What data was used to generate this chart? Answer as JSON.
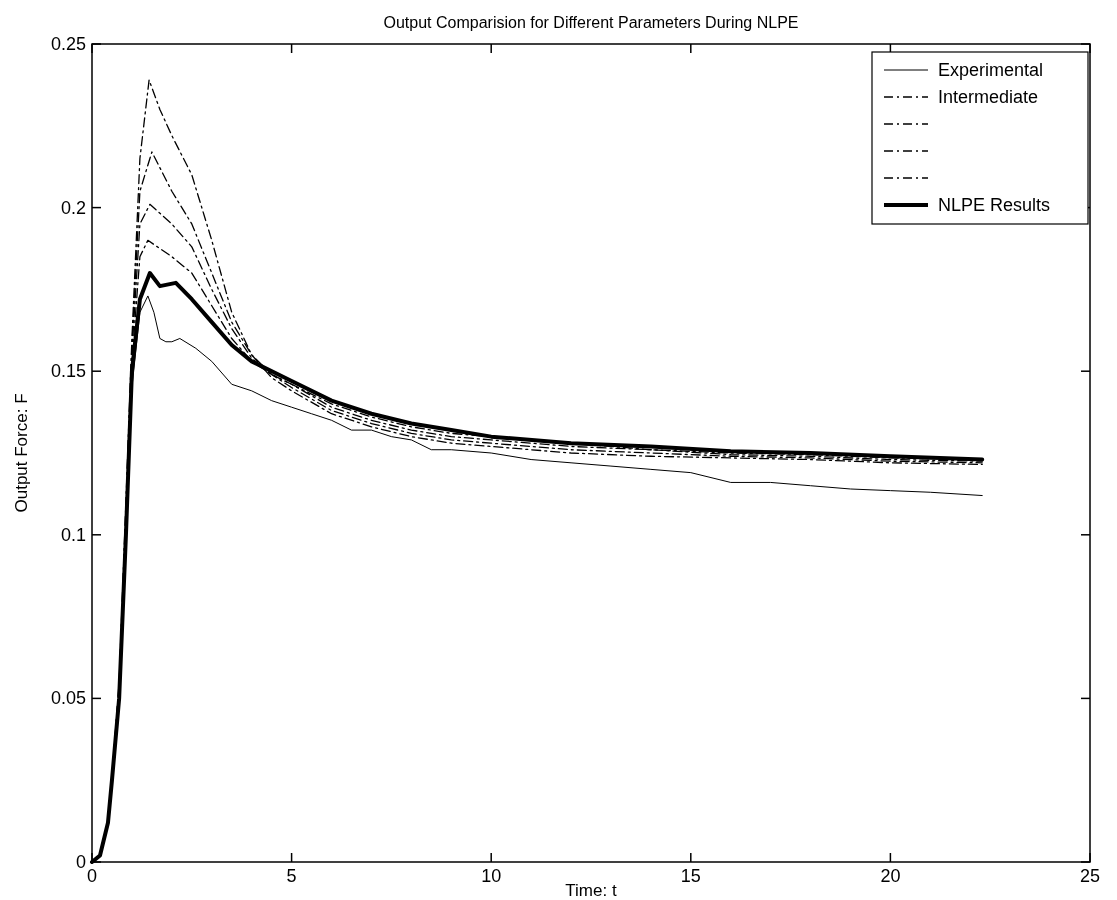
{
  "chart_data": {
    "type": "line",
    "title": "Output Comparision for Different Parameters During NLPE",
    "xlabel": "Time: t",
    "ylabel": "Output Force: F",
    "xlim": [
      0,
      25
    ],
    "ylim": [
      0,
      0.25
    ],
    "xticks": [
      0,
      5,
      10,
      15,
      20,
      25
    ],
    "yticks": [
      0,
      0.05,
      0.1,
      0.15,
      0.2,
      0.25
    ],
    "grid": false,
    "legend": "top right",
    "marker": "none",
    "series": [
      {
        "name": "Experimental",
        "color": "#000000",
        "line_style": "solid",
        "x": [
          0,
          0.2,
          0.4,
          0.5,
          0.68,
          0.85,
          1.0,
          1.2,
          1.4,
          1.55,
          1.7,
          1.85,
          2.0,
          2.2,
          2.6,
          3.0,
          3.5,
          4.0,
          4.5,
          5,
          5.5,
          6,
          6.5,
          7,
          7.5,
          8,
          8.5,
          9,
          10,
          11,
          12,
          13,
          14,
          15,
          16,
          17,
          18,
          19,
          20,
          21,
          22.3
        ],
        "values": [
          0,
          0.002,
          0.012,
          0.025,
          0.05,
          0.1,
          0.145,
          0.168,
          0.173,
          0.168,
          0.16,
          0.159,
          0.159,
          0.16,
          0.157,
          0.153,
          0.146,
          0.144,
          0.141,
          0.139,
          0.137,
          0.135,
          0.132,
          0.132,
          0.13,
          0.129,
          0.126,
          0.126,
          0.125,
          0.123,
          0.122,
          0.121,
          0.12,
          0.119,
          0.116,
          0.116,
          0.115,
          0.114,
          0.1135,
          0.113,
          0.112
        ]
      },
      {
        "name": "Intermediate",
        "color": "#000000",
        "line_style": "dashdot",
        "x": [
          0,
          0.2,
          0.4,
          0.5,
          0.68,
          0.85,
          1.0,
          1.2,
          1.43,
          1.7,
          2.0,
          2.5,
          3.0,
          3.5,
          4.0,
          4.5,
          5,
          6,
          7,
          8,
          9,
          10,
          12,
          14,
          16,
          18,
          20,
          22.3
        ],
        "values": [
          0,
          0.002,
          0.012,
          0.026,
          0.055,
          0.11,
          0.16,
          0.215,
          0.239,
          0.23,
          0.222,
          0.21,
          0.19,
          0.168,
          0.155,
          0.148,
          0.144,
          0.137,
          0.133,
          0.13,
          0.128,
          0.127,
          0.125,
          0.124,
          0.1235,
          0.123,
          0.122,
          0.1215
        ]
      },
      {
        "color": "#000000",
        "line_style": "dashdot",
        "x": [
          0,
          0.2,
          0.4,
          0.5,
          0.68,
          0.85,
          1.0,
          1.2,
          1.5,
          2.0,
          2.5,
          3.0,
          3.5,
          4.0,
          4.5,
          5,
          6,
          7,
          8,
          9,
          10,
          12,
          14,
          16,
          18,
          20,
          22.3
        ],
        "values": [
          0,
          0.002,
          0.012,
          0.026,
          0.054,
          0.108,
          0.158,
          0.205,
          0.217,
          0.205,
          0.195,
          0.18,
          0.165,
          0.155,
          0.149,
          0.145,
          0.138,
          0.134,
          0.131,
          0.129,
          0.128,
          0.126,
          0.125,
          0.124,
          0.1235,
          0.1225,
          0.122
        ]
      },
      {
        "color": "#000000",
        "line_style": "dashdot",
        "x": [
          0,
          0.2,
          0.4,
          0.5,
          0.68,
          0.85,
          1.0,
          1.2,
          1.45,
          2.0,
          2.5,
          3.0,
          3.5,
          4.0,
          4.5,
          5,
          6,
          7,
          8,
          9,
          10,
          12,
          14,
          16,
          18,
          20,
          22.3
        ],
        "values": [
          0,
          0.002,
          0.012,
          0.026,
          0.053,
          0.105,
          0.156,
          0.195,
          0.201,
          0.195,
          0.188,
          0.175,
          0.163,
          0.154,
          0.149,
          0.146,
          0.139,
          0.135,
          0.132,
          0.13,
          0.129,
          0.127,
          0.126,
          0.1245,
          0.124,
          0.123,
          0.1225
        ]
      },
      {
        "color": "#000000",
        "line_style": "dashdot",
        "x": [
          0,
          0.2,
          0.4,
          0.5,
          0.68,
          0.85,
          1.0,
          1.2,
          1.4,
          2.0,
          2.5,
          3.0,
          3.5,
          4.0,
          4.5,
          5,
          6,
          7,
          8,
          9,
          10,
          12,
          14,
          16,
          18,
          20,
          22.3
        ],
        "values": [
          0,
          0.002,
          0.012,
          0.025,
          0.052,
          0.103,
          0.153,
          0.185,
          0.19,
          0.185,
          0.18,
          0.17,
          0.16,
          0.153,
          0.149,
          0.146,
          0.14,
          0.136,
          0.133,
          0.131,
          0.13,
          0.128,
          0.126,
          0.125,
          0.1245,
          0.1235,
          0.123
        ]
      },
      {
        "name": "NLPE Results",
        "color": "#000000",
        "line_style": "solid",
        "x": [
          0,
          0.2,
          0.4,
          0.5,
          0.68,
          0.85,
          1.0,
          1.2,
          1.45,
          1.7,
          2.1,
          2.5,
          3.0,
          3.5,
          4.0,
          5,
          6,
          7,
          8,
          9,
          10,
          12,
          14,
          16,
          18,
          20,
          22.3
        ],
        "values": [
          0,
          0.002,
          0.012,
          0.025,
          0.05,
          0.1,
          0.15,
          0.172,
          0.18,
          0.176,
          0.177,
          0.172,
          0.165,
          0.158,
          0.153,
          0.147,
          0.141,
          0.137,
          0.134,
          0.132,
          0.13,
          0.128,
          0.127,
          0.1255,
          0.125,
          0.124,
          0.123
        ]
      }
    ]
  }
}
